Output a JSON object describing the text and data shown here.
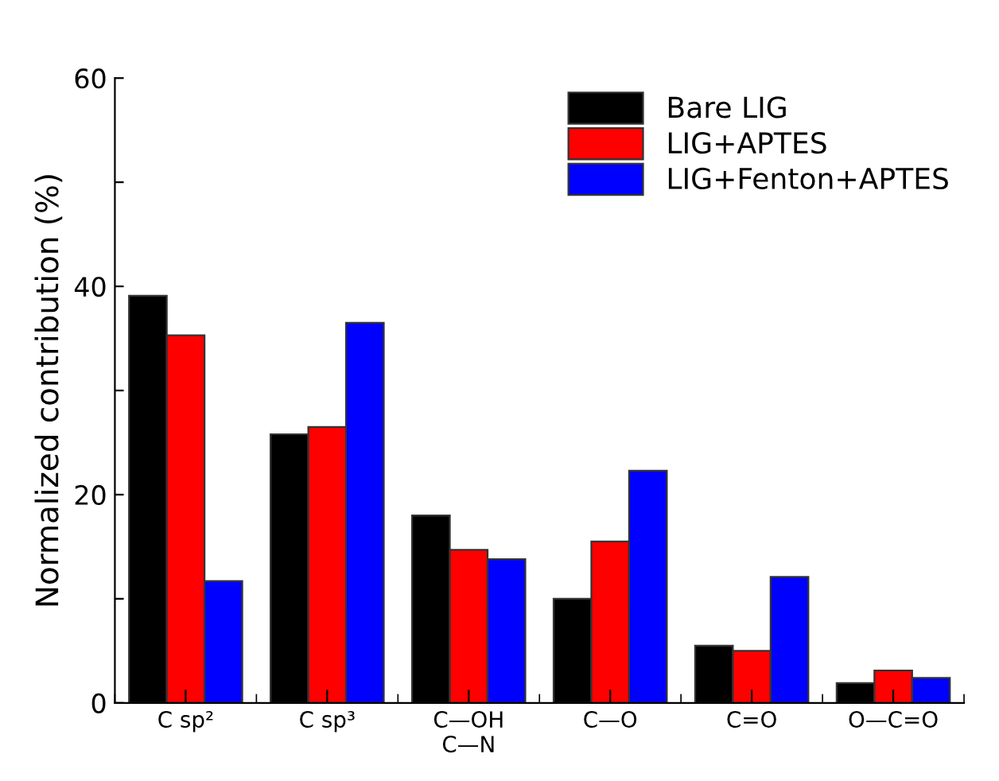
{
  "chart_data": {
    "type": "bar",
    "ylabel": "Normalized contribution (%)",
    "categories": [
      "C sp²",
      "C sp³",
      "C—OH\nC—N",
      "C—O",
      "C=O",
      "O—C=O"
    ],
    "series": [
      {
        "name": "Bare LIG",
        "color": "#000000",
        "values": [
          39.1,
          25.8,
          18.0,
          10.0,
          5.5,
          1.9
        ]
      },
      {
        "name": "LIG+APTES",
        "color": "#ff0000",
        "values": [
          35.3,
          26.5,
          14.7,
          15.5,
          5.0,
          3.1
        ]
      },
      {
        "name": "LIG+Fenton+APTES",
        "color": "#0000ff",
        "values": [
          11.7,
          36.5,
          13.8,
          22.3,
          12.1,
          2.4
        ]
      }
    ],
    "ylim": [
      0,
      60
    ],
    "yticks": [
      0,
      {
        "value": 10,
        "label": null
      },
      20,
      {
        "value": 30,
        "label": null
      },
      40,
      {
        "value": 50,
        "label": null
      },
      60
    ],
    "grid": false,
    "legend": "top right"
  }
}
